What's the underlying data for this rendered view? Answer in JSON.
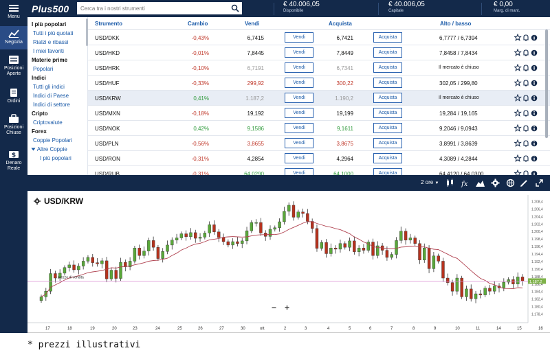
{
  "rail": {
    "menu": "Menu",
    "negozia": "Negozia",
    "posizioni_aperte": "Posizioni Aperte",
    "ordini": "Ordini",
    "posizioni_chiuse": "Posizioni Chiuse",
    "denaro_reale": "Denaro Reale"
  },
  "header": {
    "logo": "Plus500",
    "search_placeholder": "Cerca tra i nostri strumenti",
    "disponibile_value": "€ 40.006,05",
    "disponibile_label": "Disponibile",
    "capitale_value": "€ 40.006,05",
    "capitale_label": "Capitale",
    "margine_value": "€ 0,00",
    "margine_label": "Marg. di mant."
  },
  "nav": {
    "sections": [
      {
        "title": "I più popolari",
        "items": [
          "Tutti i più quotati",
          "Rialzi e ribassi",
          "I miei favoriti"
        ]
      },
      {
        "title": "Materie prime",
        "items": [
          "Popolari"
        ]
      },
      {
        "title": "Indici",
        "items": [
          "Tutti gli indici",
          "Indici di Paese",
          "Indici di settore"
        ]
      },
      {
        "title": "Cripto",
        "items": [
          "Criptovalute"
        ]
      },
      {
        "title": "Forex",
        "items": [
          "Coppie Popolari",
          "Altre Coppie"
        ]
      }
    ],
    "sub_item": "I più popolari"
  },
  "table": {
    "headers": {
      "strumento": "Strumento",
      "cambio": "Cambio",
      "vendi": "Vendi",
      "acquista": "Acquista",
      "alto_basso": "Alto / basso"
    },
    "sell_label": "Vendi",
    "buy_label": "Acquista",
    "market_closed": "Il mercato è chiuso",
    "rows": [
      {
        "symbol": "USD/DKK",
        "change": "-0,43%",
        "sell": "6,7415",
        "buy": "6,7421",
        "highlow": "6,7777 / 6,7394",
        "trend": "neg",
        "price_color": "plain",
        "closed": false
      },
      {
        "symbol": "USD/HKD",
        "change": "-0,01%",
        "sell": "7,8445",
        "buy": "7,8449",
        "highlow": "7,8458 / 7,8434",
        "trend": "neg",
        "price_color": "plain",
        "closed": false
      },
      {
        "symbol": "USD/HRK",
        "change": "-0,10%",
        "sell": "6,7191",
        "buy": "6,7341",
        "highlow": "",
        "trend": "neg",
        "price_color": "dim",
        "closed": true
      },
      {
        "symbol": "USD/HUF",
        "change": "-0,33%",
        "sell": "299,92",
        "buy": "300,22",
        "highlow": "302,05 / 299,80",
        "trend": "neg",
        "price_color": "neg",
        "closed": false
      },
      {
        "symbol": "USD/KRW",
        "change": "0,41%",
        "sell": "1.187,2",
        "buy": "1.190,2",
        "highlow": "",
        "trend": "pos",
        "price_color": "dim",
        "closed": true
      },
      {
        "symbol": "USD/MXN",
        "change": "-0,18%",
        "sell": "19,192",
        "buy": "19,199",
        "highlow": "19,284 / 19,165",
        "trend": "neg",
        "price_color": "plain",
        "closed": false
      },
      {
        "symbol": "USD/NOK",
        "change": "0,42%",
        "sell": "9,1586",
        "buy": "9,1611",
        "highlow": "9,2046 / 9,0943",
        "trend": "pos",
        "price_color": "pos",
        "closed": false
      },
      {
        "symbol": "USD/PLN",
        "change": "-0,56%",
        "sell": "3,8655",
        "buy": "3,8675",
        "highlow": "3,8991 / 3,8639",
        "trend": "neg",
        "price_color": "neg",
        "closed": false
      },
      {
        "symbol": "USD/RON",
        "change": "-0,31%",
        "sell": "4,2854",
        "buy": "4,2964",
        "highlow": "4,3089 / 4,2844",
        "trend": "neg",
        "price_color": "plain",
        "closed": false
      },
      {
        "symbol": "USD/RUB",
        "change": "-0,31%",
        "sell": "64,0290",
        "buy": "64,1000",
        "highlow": "64,4120 / 64,0300",
        "trend": "neg",
        "price_color": "pos",
        "closed": false
      }
    ]
  },
  "chart_toolbar": {
    "timeframe": "2 ore"
  },
  "chart_panel": {
    "title": "USD/KRW",
    "current_price": "1.187,2",
    "annotation": "prezzo di vendita",
    "zoom_out": "−",
    "zoom_in": "+"
  },
  "chart_data": {
    "type": "candlestick",
    "x_ticks": [
      "17",
      "18",
      "19",
      "20",
      "23",
      "24",
      "25",
      "26",
      "27",
      "30",
      "ott",
      "2",
      "3",
      "4",
      "5",
      "6",
      "7",
      "8",
      "9",
      "10",
      "11",
      "14",
      "15",
      "16"
    ],
    "y_ticks": [
      "1.208,4",
      "1.206,4",
      "1.204,4",
      "1.202,4",
      "1.200,4",
      "1.198,4",
      "1.196,4",
      "1.194,4",
      "1.192,4",
      "1.190,4",
      "1.188,4",
      "1.186,4",
      "1.184,4",
      "1.182,4",
      "1.180,4",
      "1.178,4"
    ],
    "ylim": [
      1177.4,
      1209.4
    ],
    "current_price": 1187.2,
    "closes": [
      1183.0,
      1184.5,
      1189.2,
      1188.0,
      1189.3,
      1190.8,
      1191.5,
      1190.2,
      1191.2,
      1192.5,
      1193.5,
      1192.1,
      1191.8,
      1192.6,
      1187.8,
      1190.1,
      1187.9,
      1192.2,
      1191.0,
      1192.5,
      1196.0,
      1194.0,
      1195.2,
      1198.0,
      1196.2,
      1193.2,
      1195.1,
      1196.8,
      1198.1,
      1198.7,
      1199.8,
      1199.0,
      1200.1,
      1198.6,
      1198.9,
      1200.0,
      1202.2,
      1200.3,
      1198.8,
      1197.7,
      1196.8,
      1197.7,
      1197.2,
      1197.9,
      1200.6,
      1202.8,
      1202.8,
      1200.0,
      1199.1,
      1201.0,
      1201.4,
      1203.0,
      1205.8,
      1207.4,
      1204.2,
      1205.6,
      1205.2,
      1203.1,
      1201.2,
      1195.9,
      1197.5,
      1194.5,
      1196.0,
      1195.7,
      1197.2,
      1196.2,
      1197.9,
      1195.0,
      1196.0,
      1195.4,
      1197.6,
      1194.0,
      1196.6,
      1195.4,
      1193.5,
      1194.3,
      1198.0,
      1200.5,
      1198.1,
      1198.7,
      1197.2,
      1192.8,
      1196.0,
      1190.5,
      1193.9,
      1192.5,
      1188.0,
      1186.8,
      1184.5,
      1188.0,
      1183.0,
      1185.1,
      1182.5,
      1183.8,
      1183.5,
      1185.3,
      1184.5,
      1185.9,
      1185.4,
      1186.9,
      1187.6,
      1186.4,
      1188.3,
      1187.2
    ]
  }
}
